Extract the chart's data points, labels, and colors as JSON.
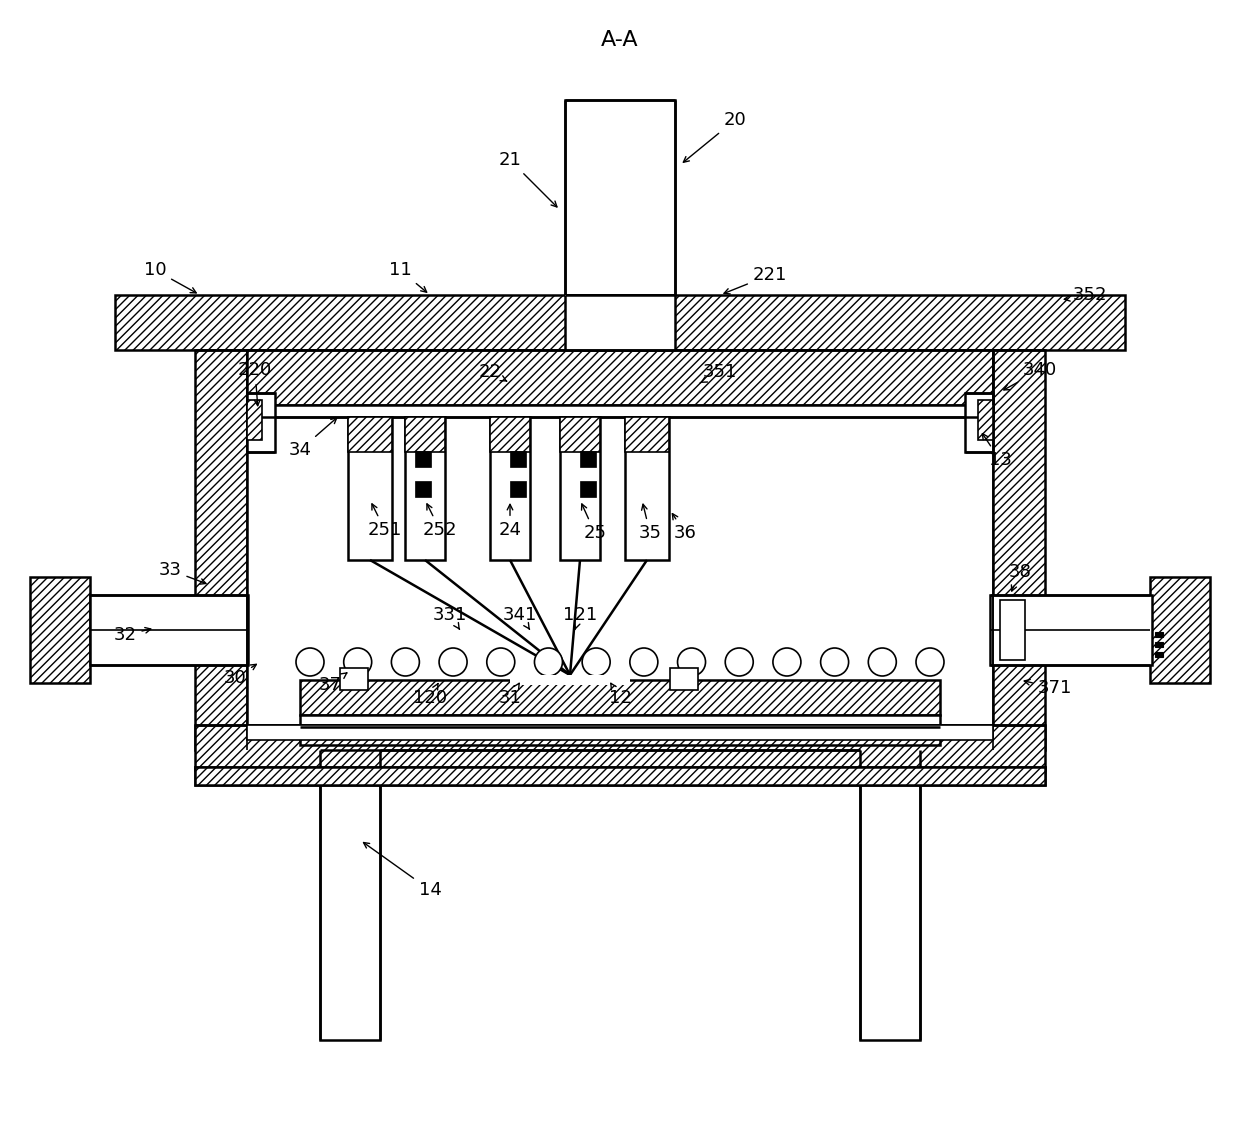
{
  "figsize": [
    12.4,
    11.4
  ],
  "dpi": 100,
  "bg": "#ffffff",
  "lc": "#000000"
}
